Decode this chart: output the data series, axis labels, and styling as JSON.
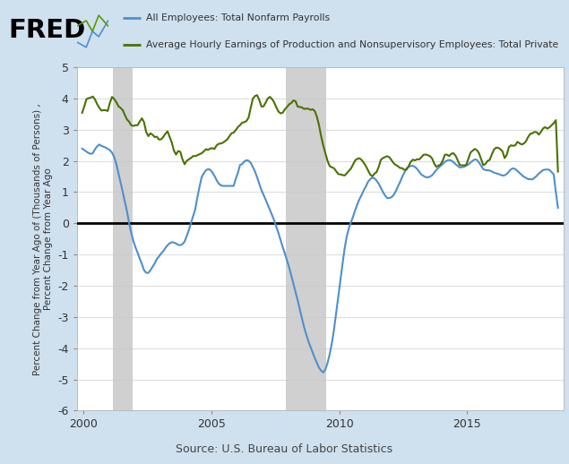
{
  "bg_color": "#cfe0ee",
  "plot_bg_color": "#ffffff",
  "blue_color": "#4e8fcc",
  "green_color": "#4a7200",
  "recession1_start": 2001.17,
  "recession1_end": 2001.92,
  "recession2_start": 2007.92,
  "recession2_end": 2009.5,
  "ylim": [
    -6,
    5
  ],
  "yticks": [
    -6,
    -5,
    -4,
    -3,
    -2,
    -1,
    0,
    1,
    2,
    3,
    4,
    5
  ],
  "xlim_start": 1999.75,
  "xlim_end": 2018.75,
  "ylabel_line1": "Percent Change from Year Ago of (Thousands of Persons) ,",
  "ylabel_line2": "Percent Change from Year Ago",
  "legend_blue": "All Employees: Total Nonfarm Payrolls",
  "legend_green": "Average Hourly Earnings of Production and Nonsupervisory Employees: Total Private",
  "source_text": "Source: U.S. Bureau of Labor Statistics",
  "xtick_years": [
    2000,
    2005,
    2010,
    2015
  ]
}
